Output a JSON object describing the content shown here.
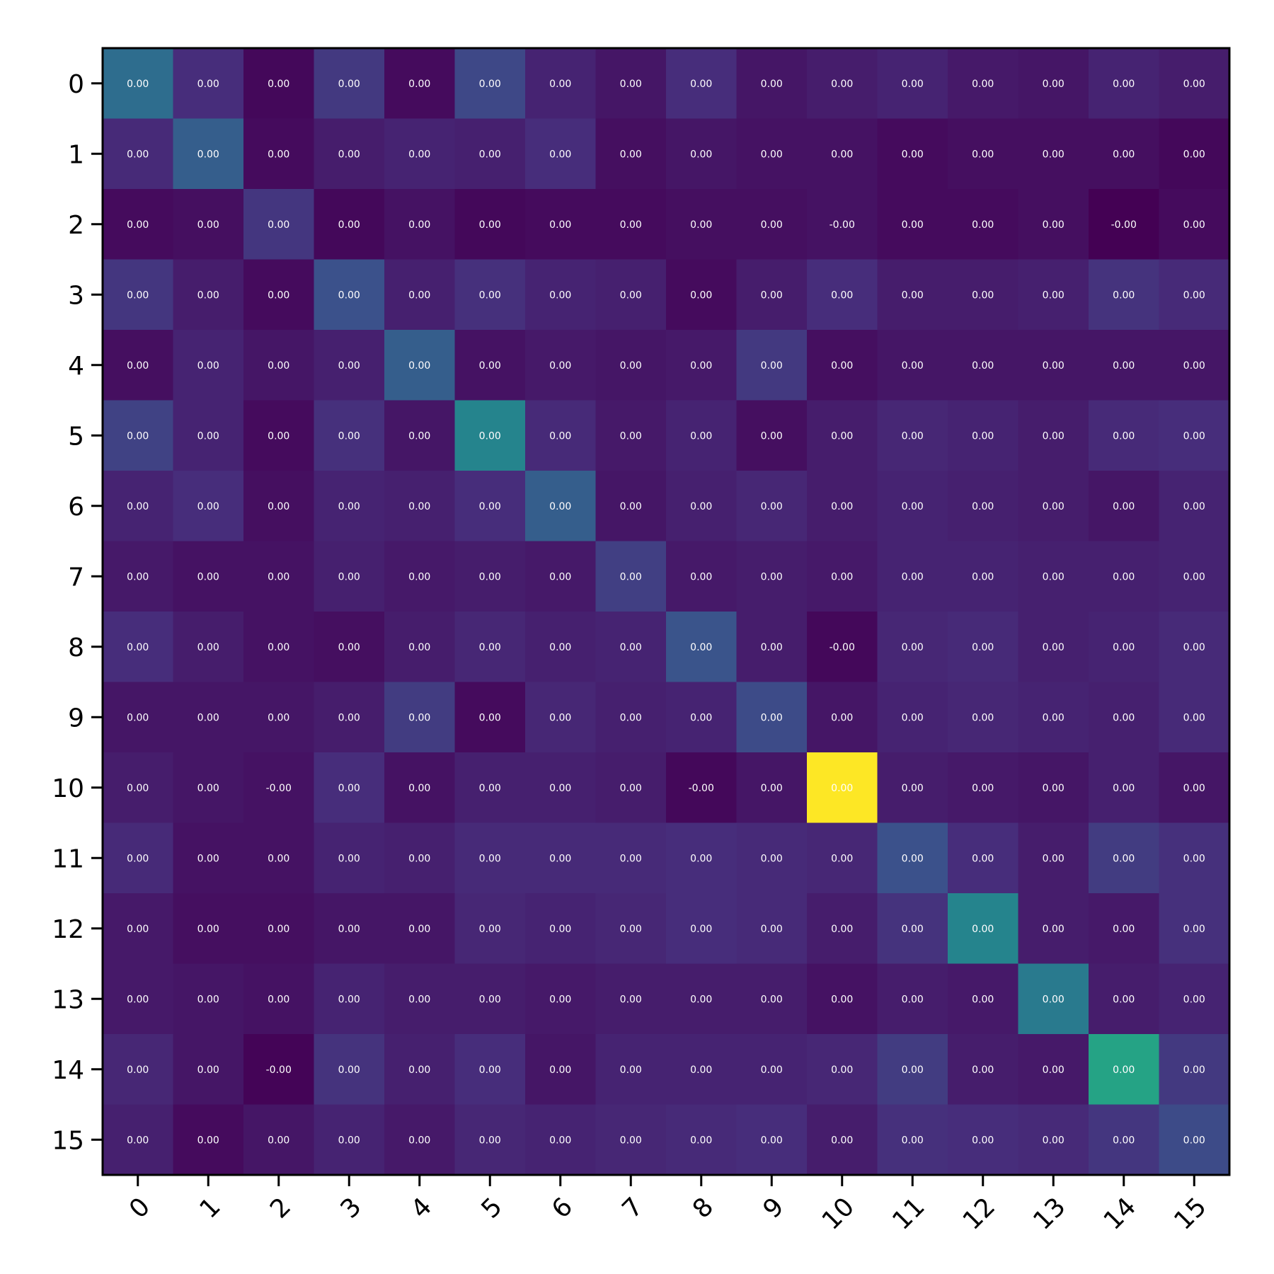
{
  "chart_data": {
    "type": "heatmap",
    "title": "",
    "xlabel": "",
    "ylabel": "",
    "colormap": "viridis",
    "x_tick_labels": [
      "0",
      "1",
      "2",
      "3",
      "4",
      "5",
      "6",
      "7",
      "8",
      "9",
      "10",
      "11",
      "12",
      "13",
      "14",
      "15"
    ],
    "y_tick_labels": [
      "0",
      "1",
      "2",
      "3",
      "4",
      "5",
      "6",
      "7",
      "8",
      "9",
      "10",
      "11",
      "12",
      "13",
      "14",
      "15"
    ],
    "intensity": [
      [
        0.36,
        0.13,
        0.02,
        0.17,
        0.03,
        0.22,
        0.1,
        0.06,
        0.13,
        0.06,
        0.08,
        0.1,
        0.07,
        0.06,
        0.1,
        0.08
      ],
      [
        0.12,
        0.3,
        0.03,
        0.08,
        0.1,
        0.09,
        0.13,
        0.04,
        0.06,
        0.05,
        0.05,
        0.03,
        0.04,
        0.04,
        0.04,
        0.02
      ],
      [
        0.03,
        0.04,
        0.16,
        0.02,
        0.05,
        0.02,
        0.03,
        0.03,
        0.04,
        0.04,
        0.05,
        0.03,
        0.03,
        0.04,
        0.0,
        0.03
      ],
      [
        0.16,
        0.08,
        0.03,
        0.25,
        0.09,
        0.14,
        0.1,
        0.09,
        0.03,
        0.08,
        0.13,
        0.08,
        0.08,
        0.09,
        0.15,
        0.12
      ],
      [
        0.04,
        0.1,
        0.06,
        0.09,
        0.3,
        0.05,
        0.07,
        0.06,
        0.07,
        0.17,
        0.04,
        0.06,
        0.06,
        0.06,
        0.06,
        0.06
      ],
      [
        0.2,
        0.1,
        0.03,
        0.14,
        0.06,
        0.45,
        0.12,
        0.07,
        0.1,
        0.04,
        0.08,
        0.11,
        0.1,
        0.08,
        0.12,
        0.13
      ],
      [
        0.1,
        0.13,
        0.04,
        0.1,
        0.09,
        0.13,
        0.3,
        0.06,
        0.09,
        0.11,
        0.08,
        0.1,
        0.09,
        0.08,
        0.06,
        0.1
      ],
      [
        0.07,
        0.05,
        0.05,
        0.09,
        0.07,
        0.08,
        0.07,
        0.19,
        0.07,
        0.08,
        0.07,
        0.1,
        0.1,
        0.09,
        0.09,
        0.1
      ],
      [
        0.13,
        0.08,
        0.05,
        0.04,
        0.08,
        0.11,
        0.09,
        0.1,
        0.26,
        0.08,
        0.02,
        0.11,
        0.12,
        0.09,
        0.1,
        0.12
      ],
      [
        0.06,
        0.06,
        0.06,
        0.08,
        0.18,
        0.03,
        0.11,
        0.09,
        0.1,
        0.23,
        0.06,
        0.1,
        0.11,
        0.1,
        0.09,
        0.12
      ],
      [
        0.08,
        0.06,
        0.05,
        0.13,
        0.05,
        0.09,
        0.09,
        0.08,
        0.02,
        0.06,
        1.0,
        0.08,
        0.07,
        0.06,
        0.09,
        0.06
      ],
      [
        0.12,
        0.05,
        0.05,
        0.1,
        0.09,
        0.12,
        0.12,
        0.12,
        0.13,
        0.12,
        0.11,
        0.25,
        0.13,
        0.08,
        0.18,
        0.14
      ],
      [
        0.07,
        0.04,
        0.04,
        0.06,
        0.06,
        0.11,
        0.1,
        0.11,
        0.13,
        0.12,
        0.08,
        0.15,
        0.45,
        0.08,
        0.07,
        0.14
      ],
      [
        0.07,
        0.06,
        0.05,
        0.1,
        0.08,
        0.08,
        0.07,
        0.08,
        0.08,
        0.08,
        0.05,
        0.08,
        0.07,
        0.41,
        0.08,
        0.1
      ],
      [
        0.11,
        0.06,
        0.01,
        0.15,
        0.09,
        0.13,
        0.06,
        0.1,
        0.1,
        0.1,
        0.11,
        0.18,
        0.08,
        0.07,
        0.58,
        0.17
      ],
      [
        0.09,
        0.03,
        0.06,
        0.1,
        0.07,
        0.11,
        0.1,
        0.11,
        0.12,
        0.13,
        0.08,
        0.14,
        0.13,
        0.12,
        0.16,
        0.23
      ]
    ],
    "cell_labels": [
      [
        "0.00",
        "0.00",
        "0.00",
        "0.00",
        "0.00",
        "0.00",
        "0.00",
        "0.00",
        "0.00",
        "0.00",
        "0.00",
        "0.00",
        "0.00",
        "0.00",
        "0.00",
        "0.00"
      ],
      [
        "0.00",
        "0.00",
        "0.00",
        "0.00",
        "0.00",
        "0.00",
        "0.00",
        "0.00",
        "0.00",
        "0.00",
        "0.00",
        "0.00",
        "0.00",
        "0.00",
        "0.00",
        "0.00"
      ],
      [
        "0.00",
        "0.00",
        "0.00",
        "0.00",
        "0.00",
        "0.00",
        "0.00",
        "0.00",
        "0.00",
        "0.00",
        "-0.00",
        "0.00",
        "0.00",
        "0.00",
        "-0.00",
        "0.00"
      ],
      [
        "0.00",
        "0.00",
        "0.00",
        "0.00",
        "0.00",
        "0.00",
        "0.00",
        "0.00",
        "0.00",
        "0.00",
        "0.00",
        "0.00",
        "0.00",
        "0.00",
        "0.00",
        "0.00"
      ],
      [
        "0.00",
        "0.00",
        "0.00",
        "0.00",
        "0.00",
        "0.00",
        "0.00",
        "0.00",
        "0.00",
        "0.00",
        "0.00",
        "0.00",
        "0.00",
        "0.00",
        "0.00",
        "0.00"
      ],
      [
        "0.00",
        "0.00",
        "0.00",
        "0.00",
        "0.00",
        "0.00",
        "0.00",
        "0.00",
        "0.00",
        "0.00",
        "0.00",
        "0.00",
        "0.00",
        "0.00",
        "0.00",
        "0.00"
      ],
      [
        "0.00",
        "0.00",
        "0.00",
        "0.00",
        "0.00",
        "0.00",
        "0.00",
        "0.00",
        "0.00",
        "0.00",
        "0.00",
        "0.00",
        "0.00",
        "0.00",
        "0.00",
        "0.00"
      ],
      [
        "0.00",
        "0.00",
        "0.00",
        "0.00",
        "0.00",
        "0.00",
        "0.00",
        "0.00",
        "0.00",
        "0.00",
        "0.00",
        "0.00",
        "0.00",
        "0.00",
        "0.00",
        "0.00"
      ],
      [
        "0.00",
        "0.00",
        "0.00",
        "0.00",
        "0.00",
        "0.00",
        "0.00",
        "0.00",
        "0.00",
        "0.00",
        "-0.00",
        "0.00",
        "0.00",
        "0.00",
        "0.00",
        "0.00"
      ],
      [
        "0.00",
        "0.00",
        "0.00",
        "0.00",
        "0.00",
        "0.00",
        "0.00",
        "0.00",
        "0.00",
        "0.00",
        "0.00",
        "0.00",
        "0.00",
        "0.00",
        "0.00",
        "0.00"
      ],
      [
        "0.00",
        "0.00",
        "-0.00",
        "0.00",
        "0.00",
        "0.00",
        "0.00",
        "0.00",
        "-0.00",
        "0.00",
        "0.00",
        "0.00",
        "0.00",
        "0.00",
        "0.00",
        "0.00"
      ],
      [
        "0.00",
        "0.00",
        "0.00",
        "0.00",
        "0.00",
        "0.00",
        "0.00",
        "0.00",
        "0.00",
        "0.00",
        "0.00",
        "0.00",
        "0.00",
        "0.00",
        "0.00",
        "0.00"
      ],
      [
        "0.00",
        "0.00",
        "0.00",
        "0.00",
        "0.00",
        "0.00",
        "0.00",
        "0.00",
        "0.00",
        "0.00",
        "0.00",
        "0.00",
        "0.00",
        "0.00",
        "0.00",
        "0.00"
      ],
      [
        "0.00",
        "0.00",
        "0.00",
        "0.00",
        "0.00",
        "0.00",
        "0.00",
        "0.00",
        "0.00",
        "0.00",
        "0.00",
        "0.00",
        "0.00",
        "0.00",
        "0.00",
        "0.00"
      ],
      [
        "0.00",
        "0.00",
        "-0.00",
        "0.00",
        "0.00",
        "0.00",
        "0.00",
        "0.00",
        "0.00",
        "0.00",
        "0.00",
        "0.00",
        "0.00",
        "0.00",
        "0.00",
        "0.00"
      ],
      [
        "0.00",
        "0.00",
        "0.00",
        "0.00",
        "0.00",
        "0.00",
        "0.00",
        "0.00",
        "0.00",
        "0.00",
        "0.00",
        "0.00",
        "0.00",
        "0.00",
        "0.00",
        "0.00"
      ]
    ],
    "grid": false,
    "legend": "none"
  }
}
